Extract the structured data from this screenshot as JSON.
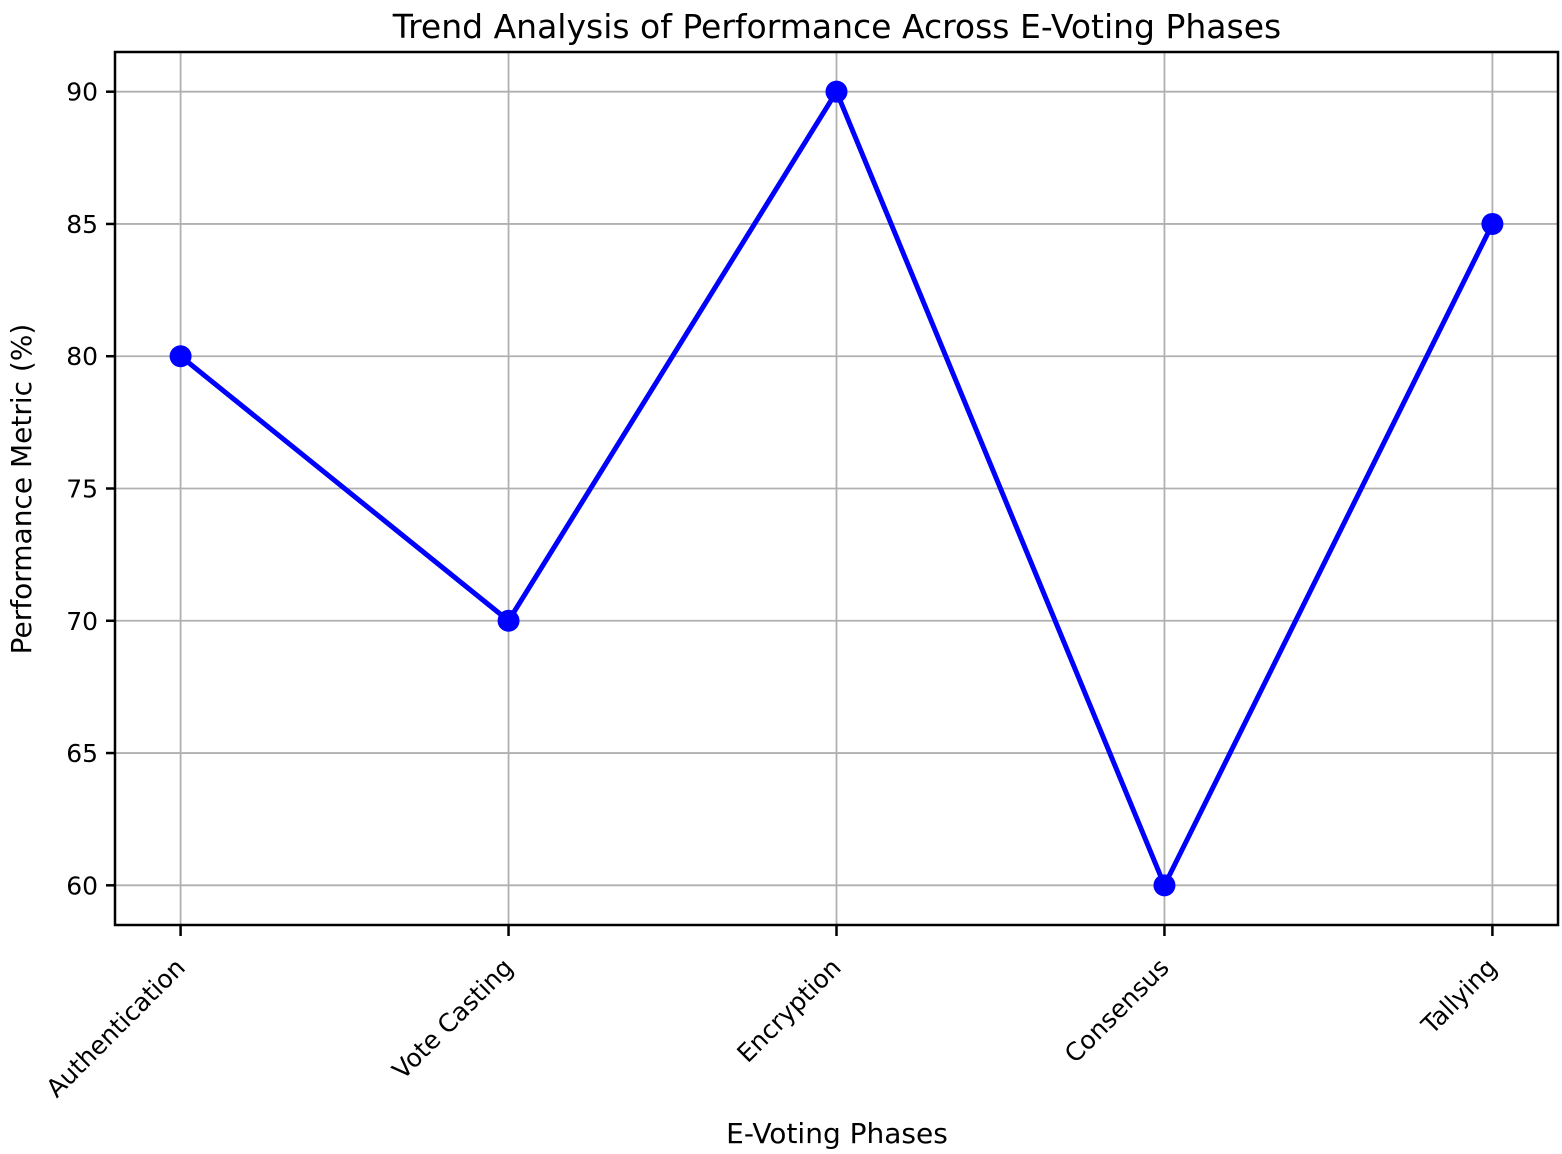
{
  "chart_data": {
    "type": "line",
    "title": "Trend Analysis of Performance Across E-Voting Phases",
    "xlabel": "E-Voting Phases",
    "ylabel": "Performance Metric (%)",
    "categories": [
      "Authentication",
      "Vote Casting",
      "Encryption",
      "Consensus",
      "Tallying"
    ],
    "series": [
      {
        "name": "Performance Metric",
        "values": [
          80,
          70,
          90,
          60,
          85
        ]
      }
    ],
    "yticks": [
      60,
      65,
      70,
      75,
      80,
      85,
      90
    ],
    "ylim": [
      58.5,
      91.5
    ],
    "grid": true,
    "legend": "none",
    "x_tick_rotation_deg": 45,
    "colors": {
      "line": "#0000ff",
      "marker": "#0000ff",
      "grid": "#b0b0b0",
      "spine": "#000000",
      "background": "#ffffff",
      "text": "#000000"
    }
  }
}
